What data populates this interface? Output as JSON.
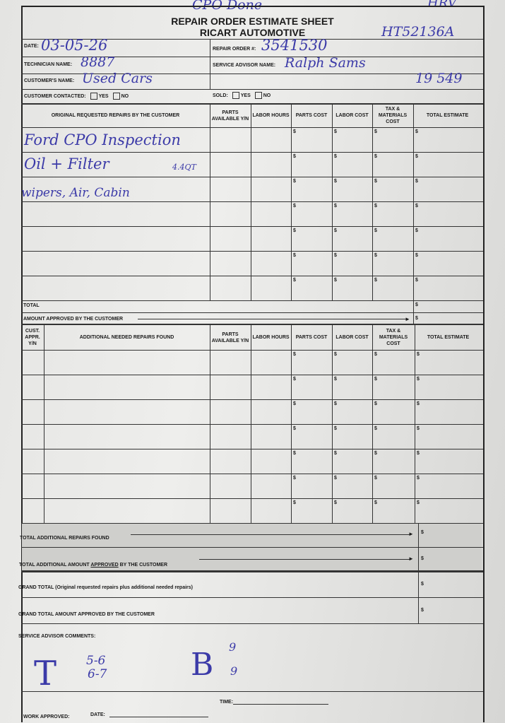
{
  "form": {
    "title": "REPAIR ORDER ESTIMATE SHEET",
    "subtitle": "RICART AUTOMOTIVE",
    "date_label": "DATE:",
    "repair_order_label": "REPAIR ORDER #:",
    "technician_label": "TECHNICIAN NAME:",
    "service_advisor_label": "SERVICE ADVISOR NAME:",
    "customer_label": "CUSTOMER'S NAME:",
    "customer_contacted_label": "CUSTOMER CONTACTED:",
    "sold_label": "SOLD:",
    "yes": "YES",
    "no": "NO"
  },
  "handwritten": {
    "top_note": "CPO Done",
    "top_right": "HRV",
    "stock_number": "HT52136A",
    "date": "03-05-26",
    "repair_order": "3541530",
    "technician": "8887",
    "service_advisor": "Ralph Sams",
    "customer": "Used Cars",
    "mileage": "19 549",
    "repairs": [
      "Ford CPO Inspection",
      "Oil + Filter",
      "wipers, Air, Cabin"
    ],
    "oil_qty": "4.4QT",
    "comment_t": "T",
    "comment_t_vals": [
      "5-6",
      "6-7"
    ],
    "comment_b": "B",
    "comment_b_vals": [
      "9",
      "9"
    ]
  },
  "table1": {
    "headers": [
      "ORIGINAL REQUESTED REPAIRS BY THE CUSTOMER",
      "PARTS AVAILABLE Y/N",
      "LABOR HOURS",
      "PARTS COST",
      "LABOR COST",
      "TAX & MATERIALS COST",
      "TOTAL ESTIMATE"
    ],
    "total_label": "TOTAL",
    "approved_label": "AMOUNT APPROVED BY THE CUSTOMER",
    "currency": "$"
  },
  "table2": {
    "headers": [
      "CUST. APPR. Y/N",
      "ADDITIONAL NEEDED REPAIRS FOUND",
      "PARTS AVAILABLE Y/N",
      "LABOR HOURS",
      "PARTS COST",
      "LABOR COST",
      "TAX & MATERIALS COST",
      "TOTAL ESTIMATE"
    ]
  },
  "summary": {
    "total_additional": "TOTAL ADDITIONAL REPAIRS FOUND",
    "total_additional_approved_pre": "TOTAL ADDITIONAL AMOUNT ",
    "total_additional_approved_u": "APPROVED",
    "total_additional_approved_post": " BY THE CUSTOMER",
    "grand_total": "GRAND TOTAL (Original requested repairs plus additional needed repairs)",
    "grand_total_approved": "GRAND TOTAL AMOUNT APPROVED BY THE CUSTOMER",
    "comments_label": "SERVICE ADVISOR COMMENTS:",
    "work_approved": "WORK APPROVED:",
    "date": "DATE:",
    "time": "TIME:"
  }
}
